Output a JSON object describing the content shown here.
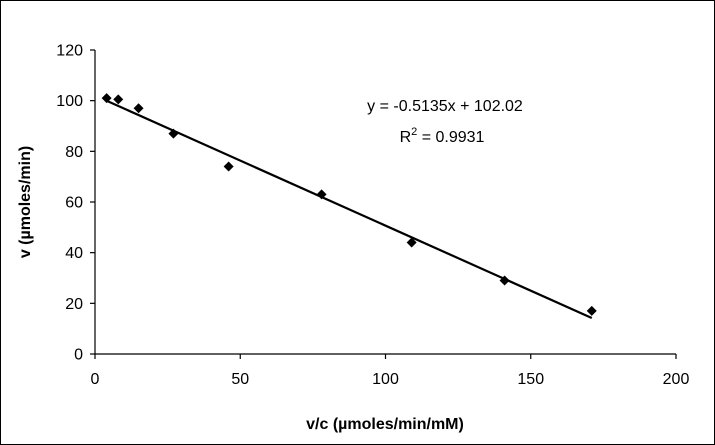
{
  "chart_data": {
    "type": "scatter",
    "xlabel": "v/c (µmoles/min/mM)",
    "ylabel": "v (µmoles/min)",
    "xlim": [
      0,
      200
    ],
    "ylim": [
      0,
      120
    ],
    "x_ticks": [
      0,
      50,
      100,
      150,
      200
    ],
    "y_ticks": [
      0,
      20,
      40,
      60,
      80,
      100,
      120
    ],
    "grid": false,
    "legend": "none",
    "marker": "diamond",
    "marker_color": "#000000",
    "series": [
      {
        "x": [
          4,
          8,
          15,
          27,
          46,
          78,
          109,
          141,
          171
        ],
        "y": [
          101,
          100.5,
          97,
          87,
          74,
          63,
          44,
          29,
          17
        ]
      }
    ],
    "trendline": {
      "slope": -0.5135,
      "intercept": 102.02,
      "x_range": [
        4,
        171
      ],
      "equation_label": "y = -0.5135x + 102.02",
      "r2_label_prefix": "R",
      "r2_label_exponent": "2",
      "r2_label_value": " = 0.9931"
    }
  }
}
